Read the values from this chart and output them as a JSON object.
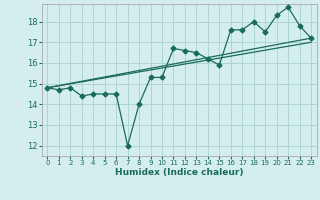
{
  "background_color": "#d4eeee",
  "grid_color": "#aed4d4",
  "line_color": "#1a6b5a",
  "xlabel": "Humidex (Indice chaleur)",
  "xlim": [
    -0.5,
    23.5
  ],
  "ylim": [
    11.5,
    18.85
  ],
  "yticks": [
    12,
    13,
    14,
    15,
    16,
    17,
    18
  ],
  "xticks": [
    0,
    1,
    2,
    3,
    4,
    5,
    6,
    7,
    8,
    9,
    10,
    11,
    12,
    13,
    14,
    15,
    16,
    17,
    18,
    19,
    20,
    21,
    22,
    23
  ],
  "series1_x": [
    0,
    1,
    2,
    3,
    4,
    5,
    6,
    7,
    8,
    9,
    10,
    11,
    12,
    13,
    14,
    15,
    16,
    17,
    18,
    19,
    20,
    21,
    22,
    23
  ],
  "series1_y": [
    14.8,
    14.7,
    14.8,
    14.4,
    14.5,
    14.5,
    14.5,
    12.0,
    14.0,
    15.3,
    15.3,
    16.7,
    16.6,
    16.5,
    16.2,
    15.9,
    17.6,
    17.6,
    18.0,
    17.5,
    18.3,
    18.7,
    17.8,
    17.2
  ],
  "series2_x": [
    0,
    23
  ],
  "series2_y": [
    14.8,
    17.2
  ],
  "series3_x": [
    0,
    23
  ],
  "series3_y": [
    14.8,
    17.0
  ]
}
